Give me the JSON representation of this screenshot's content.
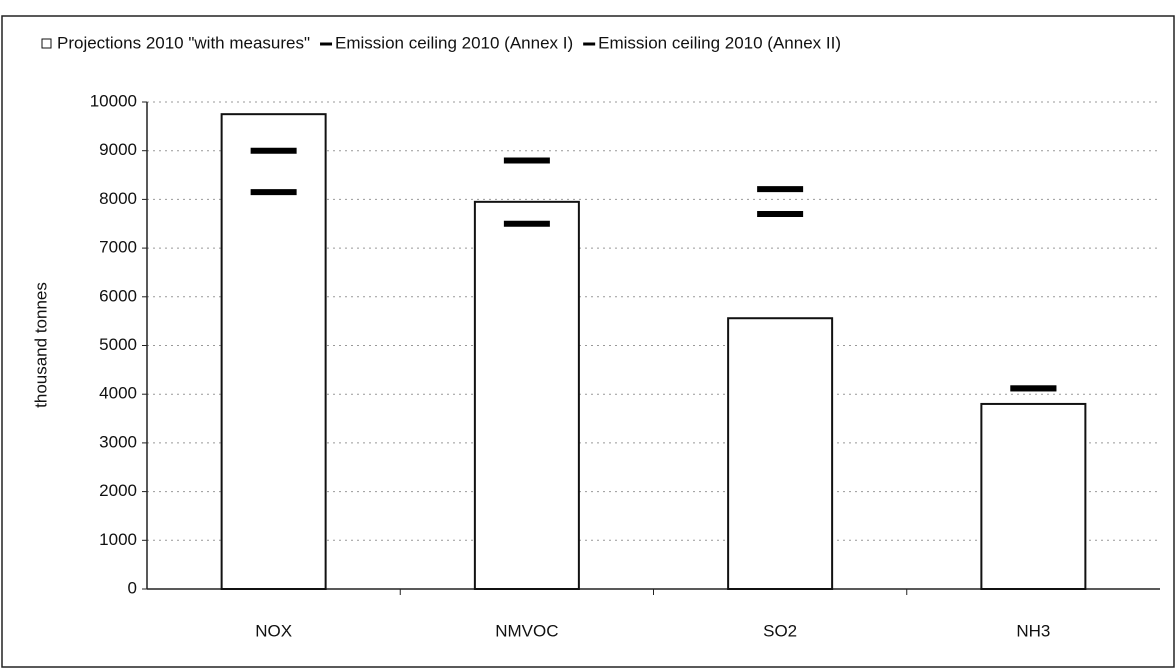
{
  "chart_data": {
    "type": "bar",
    "y_label": "thousand tonnes",
    "categories": [
      "NOX",
      "NMVOC",
      "SO2",
      "NH3"
    ],
    "series": [
      {
        "name": "Projections 2010 \"with measures\"",
        "type": "bar",
        "color": "#ffffff",
        "values": [
          9750,
          7950,
          5560,
          3800
        ]
      },
      {
        "name": "Emission ceiling 2010 (Annex I)",
        "type": "dash",
        "color": "#000000",
        "values": [
          9000,
          8800,
          8210,
          4120
        ]
      },
      {
        "name": "Emission ceiling 2010 (Annex II)",
        "type": "dash",
        "color": "#000000",
        "values": [
          8150,
          7500,
          7700,
          4120
        ]
      }
    ],
    "ylim": [
      0,
      10000
    ],
    "yticks": [
      0,
      1000,
      2000,
      3000,
      4000,
      5000,
      6000,
      7000,
      8000,
      9000,
      10000
    ],
    "grid": true
  }
}
